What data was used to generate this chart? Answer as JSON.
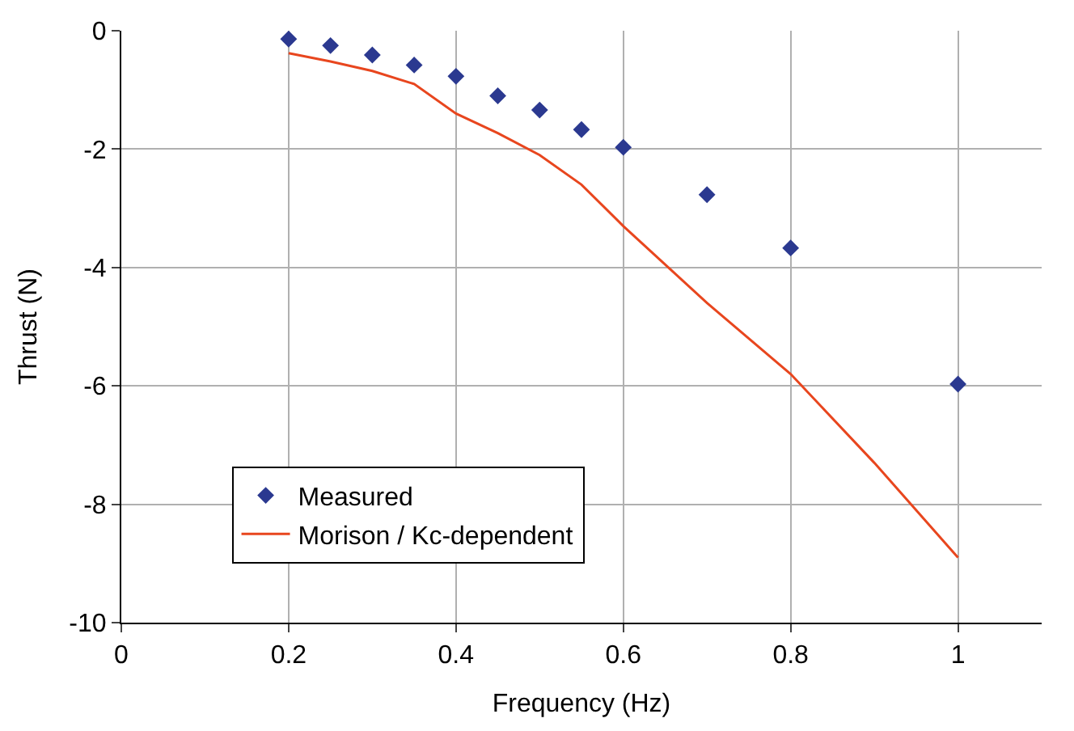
{
  "chart_data": {
    "type": "scatter",
    "xlabel": "Frequency (Hz)",
    "ylabel": "Thrust (N)",
    "series": [
      {
        "name": "Measured",
        "color": "#2b3990",
        "marker": "diamond",
        "x": [
          0.2,
          0.25,
          0.3,
          0.35,
          0.4,
          0.45,
          0.5,
          0.55,
          0.6,
          0.7,
          0.8,
          1.0
        ],
        "values": [
          -0.14,
          -0.25,
          -0.41,
          -0.58,
          -0.77,
          -1.1,
          -1.34,
          -1.67,
          -1.97,
          -2.77,
          -3.67,
          -5.97
        ]
      },
      {
        "name": "Morison / Kc-dependent",
        "type": "line",
        "color": "#e8461e",
        "marker": "none",
        "x": [
          0.2,
          0.25,
          0.3,
          0.35,
          0.4,
          0.45,
          0.5,
          0.55,
          0.6,
          0.7,
          0.8,
          0.9,
          1.0
        ],
        "values": [
          -0.38,
          -0.52,
          -0.68,
          -0.9,
          -1.4,
          -1.73,
          -2.1,
          -2.6,
          -3.3,
          -4.6,
          -5.8,
          -7.3,
          -8.9
        ]
      }
    ],
    "xlim": [
      0,
      1.1
    ],
    "xticks": [
      0,
      0.2,
      0.4,
      0.6,
      0.8,
      1
    ],
    "ylim": [
      -10,
      0
    ],
    "yticks": [
      -10,
      -8,
      -6,
      -4,
      -2,
      0
    ],
    "grid": true,
    "legend": "bottom left"
  }
}
